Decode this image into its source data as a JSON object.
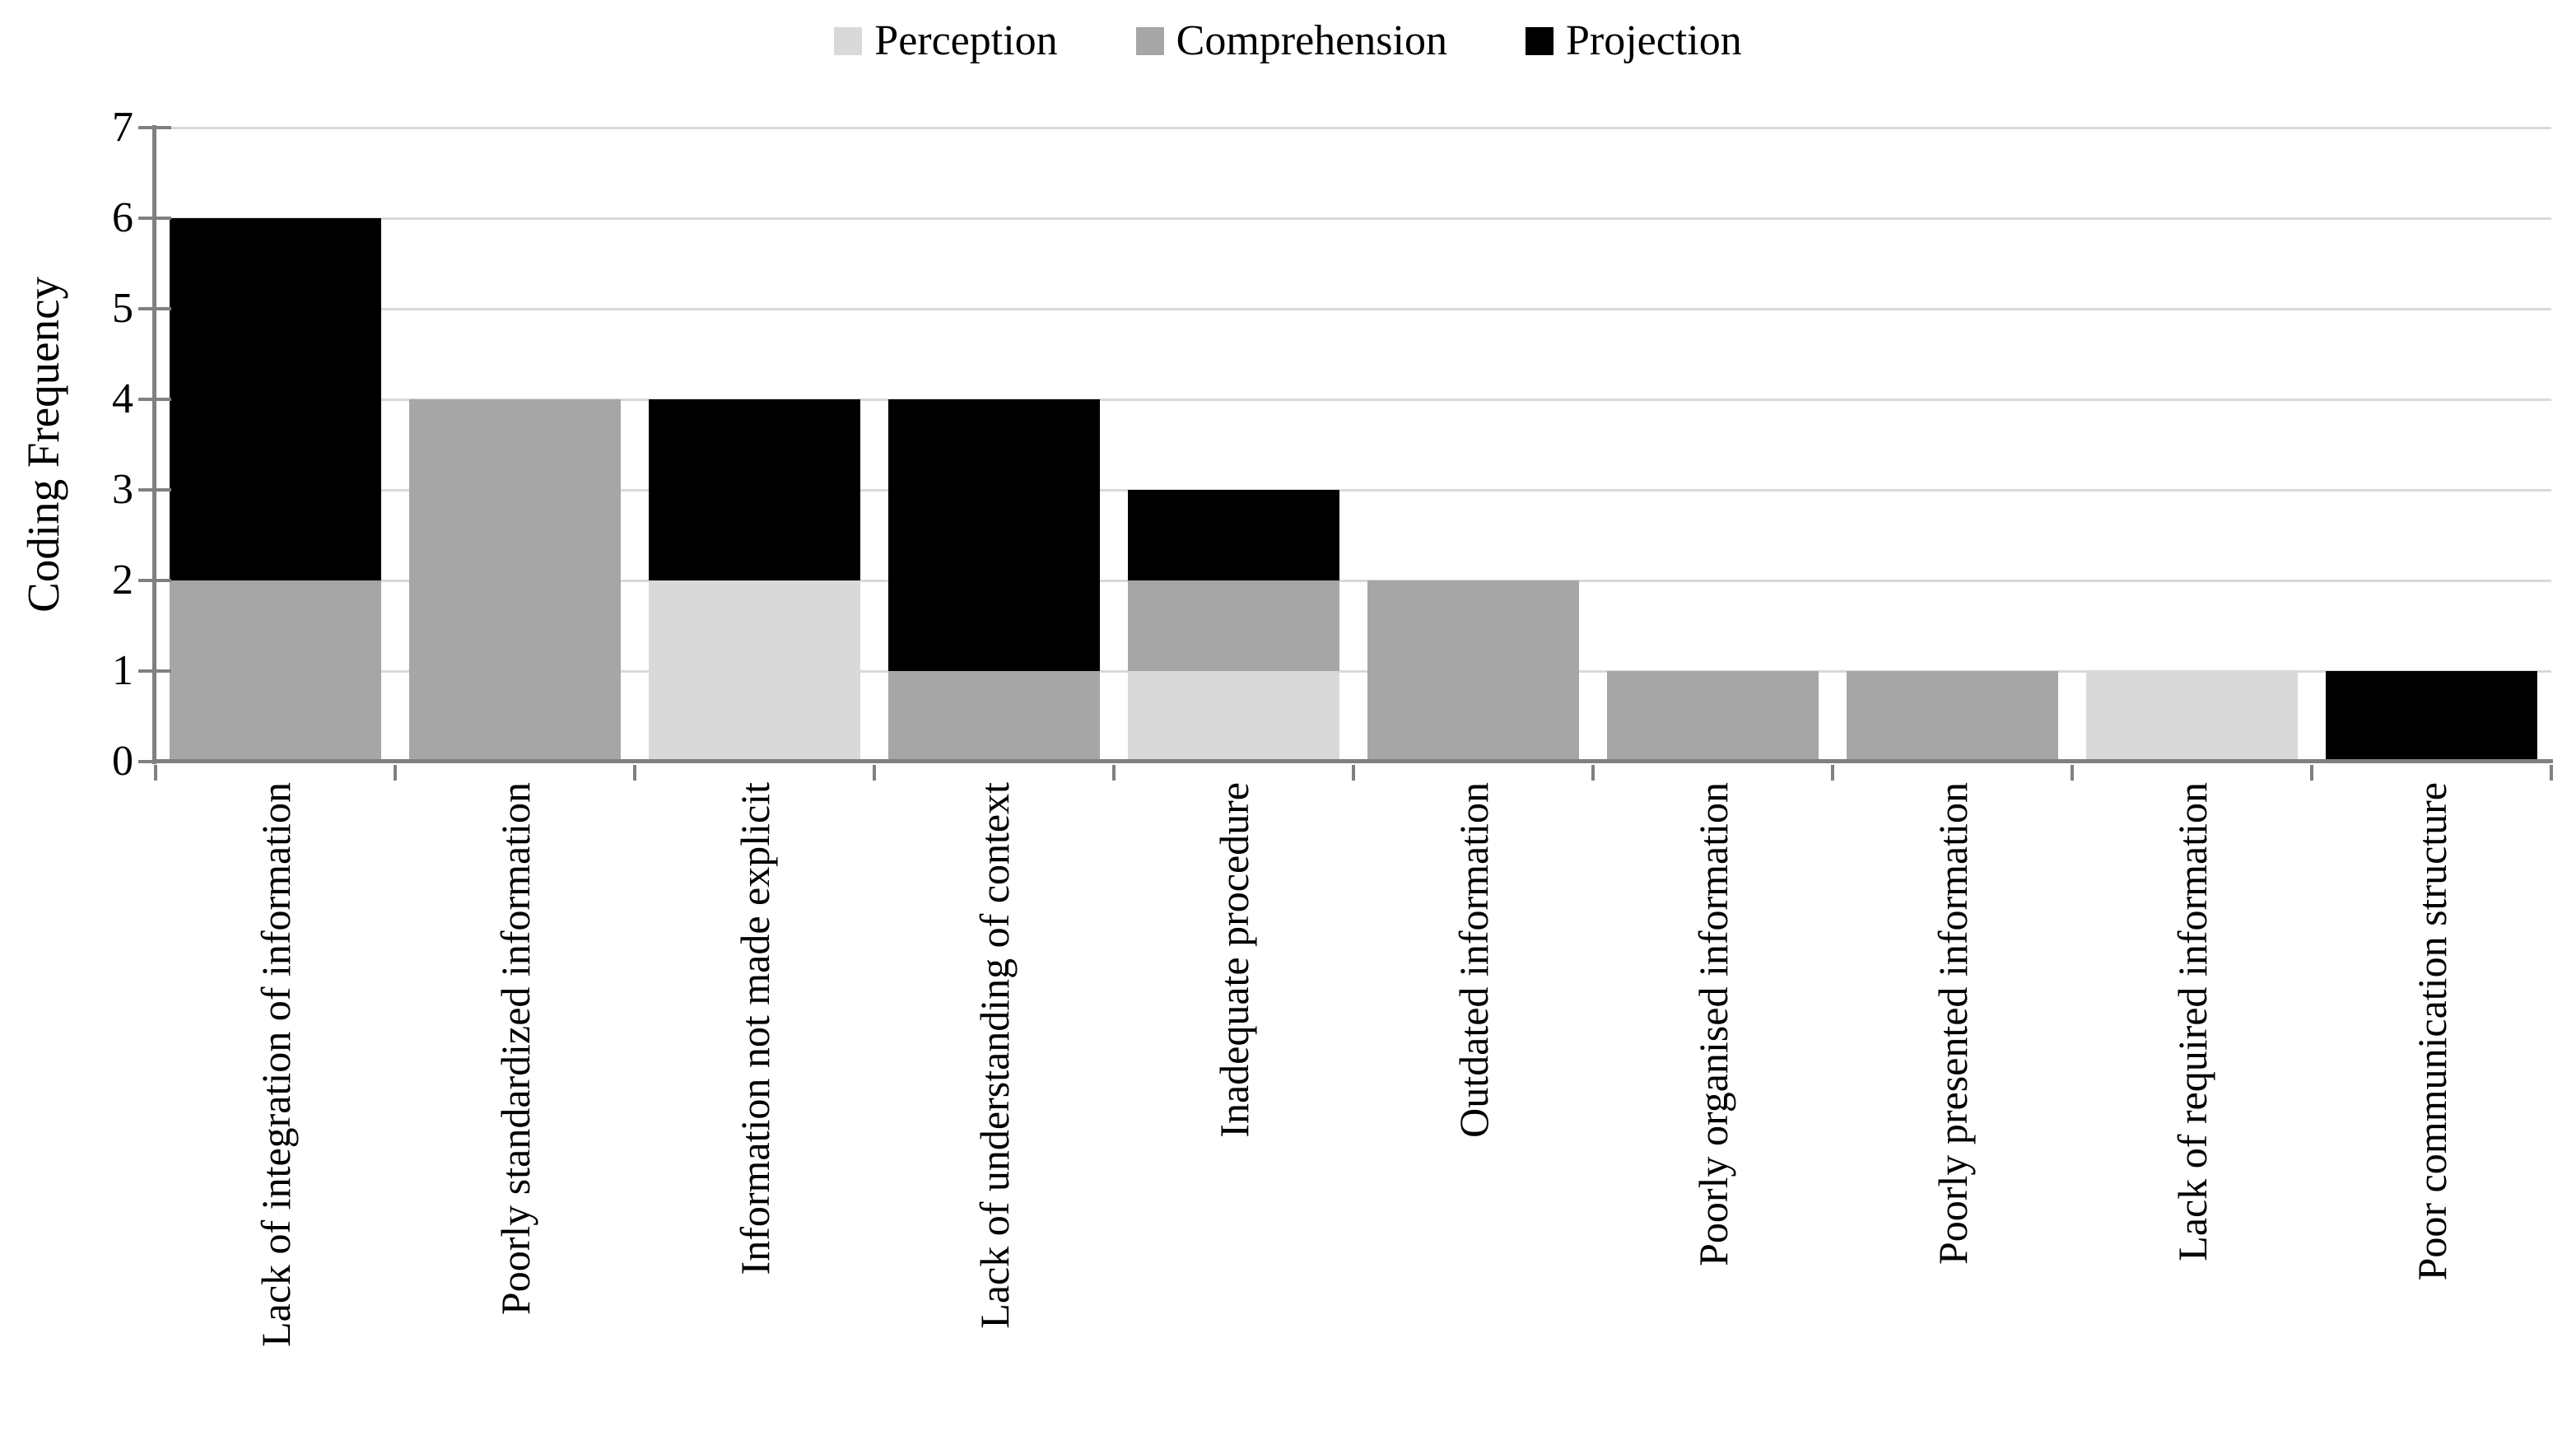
{
  "chart_data": {
    "type": "bar",
    "stacked": true,
    "title": "",
    "xlabel": "",
    "ylabel": "Coding Frequency",
    "ylim": [
      0,
      7
    ],
    "ytick_step": 1,
    "grid": "horizontal",
    "legend_position": "top",
    "categories": [
      "Lack of integration of information",
      "Poorly standardized information",
      "Information not made explicit",
      "Lack of understanding of context",
      "Inadequate procedure",
      "Outdated information",
      "Poorly organised information",
      "Poorly presented information",
      "Lack of required information",
      "Poor communication structure"
    ],
    "series": [
      {
        "name": "Perception",
        "color": "#D9D9D9",
        "values": [
          0,
          0,
          2,
          0,
          1,
          0,
          0,
          0,
          1,
          0
        ]
      },
      {
        "name": "Comprehension",
        "color": "#A6A6A6",
        "values": [
          2,
          4,
          0,
          1,
          1,
          2,
          1,
          1,
          0,
          0
        ]
      },
      {
        "name": "Projection",
        "color": "#000000",
        "values": [
          4,
          0,
          2,
          3,
          1,
          0,
          0,
          0,
          0,
          1
        ]
      }
    ],
    "totals": [
      6,
      4,
      4,
      4,
      3,
      2,
      1,
      1,
      1,
      1
    ],
    "style": {
      "axis_color": "#808080",
      "gridline_color": "#D9D9D9",
      "text_color": "#000000",
      "background": "#FFFFFF"
    }
  }
}
